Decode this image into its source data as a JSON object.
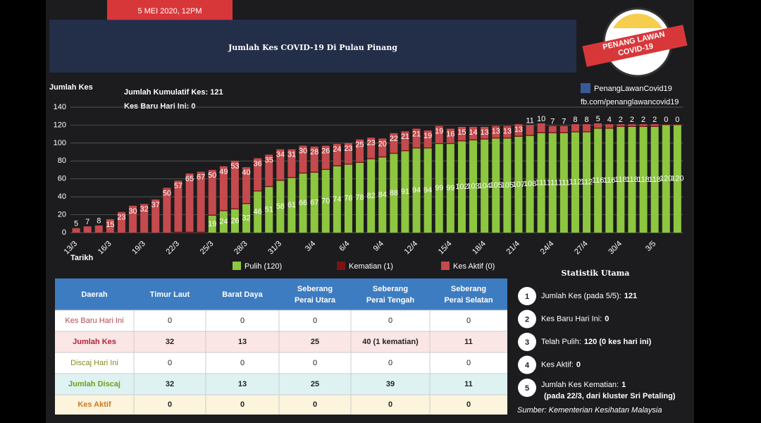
{
  "header": {
    "date": "5 MEI 2020, 12PM",
    "title": "Jumlah Kes COVID-19 Di Pulau Pinang",
    "logo": [
      "PENANG LAWAN",
      "COVID-19"
    ],
    "social": "PenangLawanCovid19",
    "link": "fb.com/penanglawancovid19"
  },
  "chart_data": {
    "type": "bar",
    "stacked": true,
    "annotations": [
      "Jumlah Kumulatif Kes: 121",
      "Kes Baru Hari Ini: 0"
    ],
    "y_label": "Jumlah Kes",
    "x_label": "Tarikh",
    "categories": [
      "13/3",
      null,
      null,
      "16/3",
      null,
      null,
      "19/3",
      null,
      null,
      "22/3",
      null,
      null,
      "25/3",
      null,
      null,
      "28/3",
      null,
      null,
      "31/3",
      null,
      null,
      "3/4",
      null,
      null,
      "6/4",
      null,
      null,
      "9/4",
      null,
      null,
      "12/4",
      null,
      null,
      "15/4",
      null,
      null,
      "18/4",
      null,
      null,
      "21/4",
      null,
      null,
      "24/4",
      null,
      null,
      "27/4",
      null,
      null,
      "30/4",
      null,
      null,
      "3/5",
      null,
      null
    ],
    "series": [
      {
        "name": "Pulih (120)",
        "color": "#8dc63f",
        "labels": true,
        "values": [
          null,
          null,
          null,
          null,
          null,
          null,
          null,
          null,
          null,
          null,
          null,
          null,
          19,
          24,
          26,
          32,
          46,
          51,
          58,
          61,
          66,
          67,
          70,
          74,
          76,
          78,
          82,
          84,
          88,
          91,
          94,
          94,
          99,
          99,
          102,
          103,
          104,
          105,
          105,
          107,
          108,
          111,
          111,
          111,
          112,
          112,
          116,
          116,
          118,
          118,
          118,
          118,
          120,
          120
        ]
      },
      {
        "name": "Kematian (1)",
        "color": "#7a1414",
        "labels": false,
        "values": [
          0,
          0,
          0,
          0,
          0,
          0,
          0,
          0,
          0,
          1,
          1,
          1,
          1,
          1,
          1,
          1,
          1,
          1,
          1,
          1,
          1,
          1,
          1,
          1,
          1,
          1,
          1,
          1,
          1,
          1,
          1,
          1,
          1,
          1,
          1,
          1,
          1,
          1,
          1,
          1,
          1,
          1,
          1,
          1,
          1,
          1,
          1,
          1,
          1,
          1,
          1,
          1,
          1,
          1
        ]
      },
      {
        "name": "Kes Aktif (0)",
        "color": "#c44a4d",
        "labels": true,
        "values": [
          5,
          7,
          8,
          15,
          23,
          30,
          32,
          37,
          50,
          57,
          65,
          67,
          50,
          49,
          53,
          40,
          36,
          35,
          34,
          31,
          30,
          28,
          26,
          24,
          23,
          25,
          23,
          20,
          22,
          21,
          21,
          19,
          19,
          16,
          15,
          14,
          13,
          13,
          13,
          13,
          11,
          10,
          7,
          7,
          8,
          8,
          5,
          4,
          2,
          2,
          2,
          2,
          0,
          0
        ]
      }
    ],
    "ylim": [
      0,
      140
    ],
    "yticks": [
      0,
      20,
      40,
      60,
      80,
      100,
      120,
      140
    ],
    "grid": true
  },
  "table": {
    "header": [
      "Daerah",
      "Timur Laut",
      "Barat Daya",
      "Seberang Perai Utara",
      "Seberang Perai Tengah",
      "Seberang Perai Selatan"
    ],
    "rows": [
      {
        "label": "Kes Baru Hari Ini",
        "cells": [
          0,
          0,
          0,
          0,
          0
        ]
      },
      {
        "label": "Jumlah Kes",
        "cells": [
          32,
          13,
          25,
          "40 (1 kematian)",
          11
        ]
      },
      {
        "label": "Discaj Hari Ini",
        "cells": [
          0,
          0,
          0,
          0,
          0
        ]
      },
      {
        "label": "Jumlah Discaj",
        "cells": [
          32,
          13,
          25,
          39,
          11
        ]
      },
      {
        "label": "Kes Aktif",
        "cells": [
          0,
          0,
          0,
          0,
          0
        ]
      }
    ]
  },
  "stats": {
    "title": "Statistik Utama",
    "items": [
      {
        "number": 1,
        "label": "Jumlah Kes (pada 5/5):",
        "value": "121"
      },
      {
        "number": 2,
        "label": "Kes Baru Hari Ini:",
        "value": "0"
      },
      {
        "number": 3,
        "label": "Telah Pulih:",
        "value": "120 (0 kes hari ini)"
      },
      {
        "number": 4,
        "label": "Kes Aktif:",
        "value": "0"
      },
      {
        "number": 5,
        "label": "Jumlah Kes Kematian:",
        "value": "1",
        "note": "(pada 22/3, dari kluster Sri Petaling)"
      }
    ],
    "source": "Sumber: Kementerian Kesihatan Malaysia"
  }
}
